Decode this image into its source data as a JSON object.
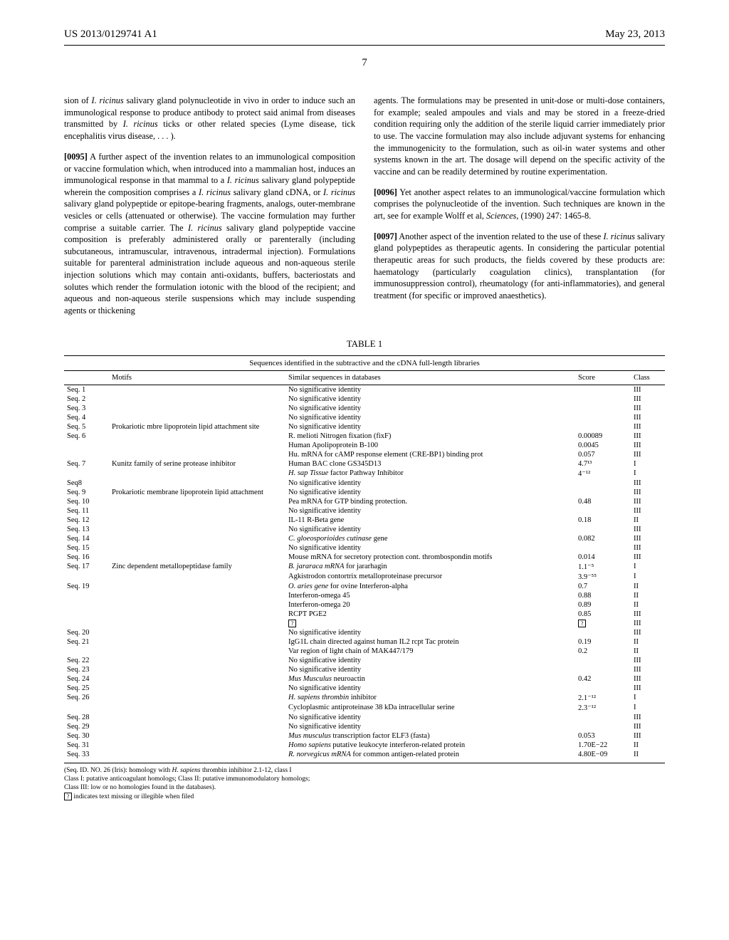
{
  "header": {
    "pub_number": "US 2013/0129741 A1",
    "pub_date": "May 23, 2013",
    "page_number": "7"
  },
  "left_column": {
    "p1a": "sion of ",
    "p1b": "I. ricinus",
    "p1c": " salivary gland polynucleotide in vivo in order to induce such an immunological response to produce antibody to protect said animal from diseases transmitted by ",
    "p1d": "I. ricinus",
    "p1e": " ticks or other related species (Lyme disease, tick encephalitis virus disease, . . . ).",
    "p2num": "[0095]",
    "p2a": "    A further aspect of the invention relates to an immunological composition or vaccine formulation which, when introduced into a mammalian host, induces an immunological response in that mammal to a ",
    "p2b": "I. ricinus",
    "p2c": " salivary gland polypeptide wherein the composition comprises a ",
    "p2d": "I. ricinus",
    "p2e": " salivary gland cDNA, or ",
    "p2f": "I. ricinus",
    "p2g": " salivary gland polypeptide or epitope-bearing fragments, analogs, outer-membrane vesicles or cells (attenuated or otherwise). The vaccine formulation may further comprise a suitable carrier. The ",
    "p2h": "I. ricinus",
    "p2i": " salivary gland polypeptide vaccine composition is preferably administered orally or parenterally (including subcutaneous, intramuscular, intravenous, intradermal injection). Formulations suitable for parenteral administration include aqueous and non-aqueous sterile injection solutions which may contain anti-oxidants, buffers, bacteriostats and solutes which render the formulation iotonic with the blood of the recipient; and aqueous and non-aqueous sterile suspensions which may include suspending agents or thickening"
  },
  "right_column": {
    "p3": "agents. The formulations may be presented in unit-dose or multi-dose containers, for example; sealed ampoules and vials and may be stored in a freeze-dried condition requiring only the addition of the sterile liquid carrier immediately prior to use. The vaccine formulation may also include adjuvant systems for enhancing the immunogenicity to the formulation, such as oil-in water systems and other systems known in the art. The dosage will depend on the specific activity of the vaccine and can be readily determined by routine experimentation.",
    "p4num": "[0096]",
    "p4a": "    Yet another aspect relates to an immunological/vaccine formulation which comprises the polynucleotide of the invention. Such techniques are known in the art, see for example Wolff et al, ",
    "p4b": "Sciences,",
    "p4c": " (1990) 247: 1465-8.",
    "p5num": "[0097]",
    "p5a": "    Another aspect of the invention related to the use of these ",
    "p5b": "I. ricinus",
    "p5c": " salivary gland polypeptides as therapeutic agents. In considering the particular potential therapeutic areas for such products, the fields covered by these products are: haematology (particularly coagulation clinics), transplantation (for immunosuppression control), rheumatology (for anti-inflammatories), and general treatment (for specific or improved anaesthetics)."
  },
  "table": {
    "caption": "TABLE 1",
    "subcaption": "Sequences identified in the subtractive and the cDNA full-length libraries",
    "columns": [
      "",
      "Motifs",
      "Similar sequences in databases",
      "Score",
      "Class"
    ],
    "rows": [
      [
        "Seq. 1",
        "",
        "No significative identity",
        "",
        "III"
      ],
      [
        "Seq. 2",
        "",
        "No significative identity",
        "",
        "III"
      ],
      [
        "Seq. 3",
        "",
        "No significative identity",
        "",
        "III"
      ],
      [
        "Seq. 4",
        "",
        "No significative identity",
        "",
        "III"
      ],
      [
        "Seq. 5",
        "Prokariotic mbre lipoprotein lipid attachment site",
        "No significative identity",
        "",
        "III"
      ],
      [
        "Seq. 6",
        "",
        "R. melioti Nitrogen fixation (fixF)",
        "0.00089",
        "III"
      ],
      [
        "",
        "",
        "Human Apolipoprotein B-100",
        "0.0045",
        "III"
      ],
      [
        "",
        "",
        "Hu. mRNA for cAMP response element (CRE-BP1) binding prot",
        "0.057",
        "III"
      ],
      [
        "Seq. 7",
        "Kunitz family of serine protease inhibitor",
        "Human BAC clone GS345D13",
        "4.7¹³",
        "I"
      ],
      [
        "",
        "",
        "H. sap Tissue factor Pathway Inhibitor",
        "4⁻¹²",
        "I",
        "italic-similar"
      ],
      [
        "Seq8",
        "",
        "No significative identity",
        "",
        "III"
      ],
      [
        "Seq. 9",
        "Prokariotic membrane lipoprotein lipid attachment",
        "No significative identity",
        "",
        "III"
      ],
      [
        "Seq. 10",
        "",
        "Pea mRNA for GTP binding protection.",
        "0.48",
        "III"
      ],
      [
        "Seq. 11",
        "",
        "No significative identity",
        "",
        "III"
      ],
      [
        "Seq. 12",
        "",
        "IL-11 R-Beta gene",
        "0.18",
        "II"
      ],
      [
        "Seq. 13",
        "",
        "No significative identity",
        "",
        "III"
      ],
      [
        "Seq. 14",
        "",
        "C. gloeosporioides cutinase gene",
        "0.082",
        "III",
        "italic-similar"
      ],
      [
        "Seq. 15",
        "",
        "No significative identity",
        "",
        "III"
      ],
      [
        "Seq. 16",
        "",
        "Mouse mRNA for secretory protection cont. thrombospondin motifs",
        "0.014",
        "III"
      ],
      [
        "Seq. 17",
        "Zinc dependent metallopeptidase family",
        "B. jararaca mRNA for jararhagin",
        "1.1⁻⁵",
        "I",
        "italic-similar"
      ],
      [
        "",
        "",
        "Agkistrodon contortrix metalloproteinase precursor",
        "3.9⁻⁵⁵",
        "I"
      ],
      [
        "Seq. 19",
        "",
        "O. aries gene for ovine Interferon-alpha",
        "0.7",
        "II",
        "italic-similar"
      ],
      [
        "",
        "",
        "Interferon-omega 45",
        "0.88",
        "II"
      ],
      [
        "",
        "",
        "Interferon-omega 20",
        "0.89",
        "II"
      ],
      [
        "",
        "",
        "RCPT PGE2",
        "0.85",
        "III"
      ],
      [
        "",
        "",
        "?",
        "?",
        "III",
        "illegible"
      ],
      [
        "Seq. 20",
        "",
        "No significative identity",
        "",
        "III"
      ],
      [
        "Seq. 21",
        "",
        "IgG1L chain directed against human IL2 rcpt Tac protein",
        "0.19",
        "II"
      ],
      [
        "",
        "",
        "Var region of light chain of MAK447/179",
        "0.2",
        "II"
      ],
      [
        "Seq. 22",
        "",
        "No significative identity",
        "",
        "III"
      ],
      [
        "Seq. 23",
        "",
        "No significative identity",
        "",
        "III"
      ],
      [
        "Seq. 24",
        "",
        "Mus Musculus neuroactin",
        "0.42",
        "III",
        "italic-similar"
      ],
      [
        "Seq. 25",
        "",
        "No significative identity",
        "",
        "III"
      ],
      [
        "Seq. 26",
        "",
        "H. sapiens thrombin inhibitor",
        "2.1⁻¹²",
        "I",
        "italic-similar"
      ],
      [
        "",
        "",
        "Cycloplasmic antiproteinase 38 kDa intracellular serine",
        "2.3⁻¹²",
        "I"
      ],
      [
        "Seq. 28",
        "",
        "No significative identity",
        "",
        "III"
      ],
      [
        "Seq. 29",
        "",
        "No significative identity",
        "",
        "III"
      ],
      [
        "Seq. 30",
        "",
        "Mus musculus transcription factor ELF3 (fasta)",
        "0.053",
        "III",
        "italic-similar"
      ],
      [
        "Seq. 31",
        "",
        "Homo sapiens putative leukocyte interferon-related protein",
        "1.70E−22",
        "II",
        "italic-similar"
      ],
      [
        "Seq. 33",
        "",
        "R. norvegicus mRNA for common antigen-related protein",
        "4.80E−09",
        "II",
        "italic-similar"
      ]
    ]
  },
  "footnotes": {
    "f1a": "(Seq. ID. NO. 26 (Iris): homology with ",
    "f1b": "H. sapiens",
    "f1c": " thrombin inhibitor 2.1-12, class I",
    "f2": "Class I: putative anticoagulant homologs; Class II: putative immunomodulatory homologs;",
    "f3": "Class III: low or no homologies found in the databases).",
    "f4": " indicates text missing or illegible when filed"
  }
}
